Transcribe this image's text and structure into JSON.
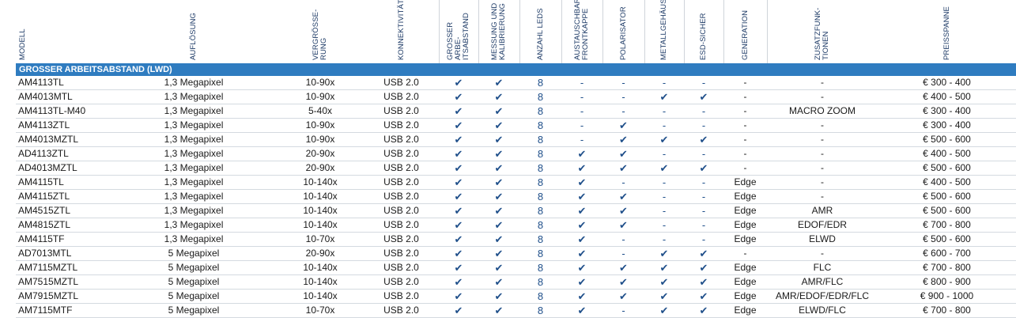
{
  "table": {
    "columns": [
      [
        "MODELL"
      ],
      [
        "AUFLÖSUNG"
      ],
      [
        "VERGRÖSSE-",
        "RUNG"
      ],
      [
        "KONNEKTIVITÄT"
      ],
      [
        "GROSSER ARBE-",
        "ITSABSTAND"
      ],
      [
        "MESSUNG UND",
        "KALIBRIERUNG"
      ],
      [
        "ANZAHL LEDS"
      ],
      [
        "AUSTAUSCHBARE",
        "FRONTKAPPE"
      ],
      [
        "POLARISATOR"
      ],
      [
        "METALLGEHÄUSE"
      ],
      [
        "ESD-SICHER"
      ],
      [
        "GENERATION"
      ],
      [
        "ZUSATZFUNK-",
        "TIONEN"
      ],
      [
        "PREISSPANNE"
      ]
    ],
    "section": "GROSSER ARBEITSABSTAND (LWD)",
    "rows": [
      [
        "AM4113TL",
        "1,3 Megapixel",
        "10-90x",
        "USB 2.0",
        "✔",
        "✔",
        8,
        "-",
        "-",
        "-",
        "-",
        "-",
        "-",
        "€ 300 - 400"
      ],
      [
        "AM4013MTL",
        "1,3 Megapixel",
        "10-90x",
        "USB 2.0",
        "✔",
        "✔",
        8,
        "-",
        "-",
        "✔",
        "✔",
        "-",
        "-",
        "€ 400 - 500"
      ],
      [
        "AM4113TL-M40",
        "1,3 Megapixel",
        "5-40x",
        "USB 2.0",
        "✔",
        "✔",
        8,
        "-",
        "-",
        "-",
        "-",
        "-",
        "MACRO ZOOM",
        "€ 300 - 400"
      ],
      [
        "AM4113ZTL",
        "1,3 Megapixel",
        "10-90x",
        "USB 2.0",
        "✔",
        "✔",
        8,
        "-",
        "✔",
        "-",
        "-",
        "-",
        "-",
        "€ 300 - 400"
      ],
      [
        "AM4013MZTL",
        "1,3 Megapixel",
        "10-90x",
        "USB 2.0",
        "✔",
        "✔",
        8,
        "-",
        "✔",
        "✔",
        "✔",
        "-",
        "-",
        "€ 500 - 600"
      ],
      [
        "AD4113ZTL",
        "1,3 Megapixel",
        "20-90x",
        "USB 2.0",
        "✔",
        "✔",
        8,
        "✔",
        "✔",
        "-",
        "-",
        "-",
        "-",
        "€ 400 - 500"
      ],
      [
        "AD4013MZTL",
        "1,3 Megapixel",
        "20-90x",
        "USB 2.0",
        "✔",
        "✔",
        8,
        "✔",
        "✔",
        "✔",
        "✔",
        "-",
        "-",
        "€ 500 - 600"
      ],
      [
        "AM4115TL",
        "1,3 Megapixel",
        "10-140x",
        "USB 2.0",
        "✔",
        "✔",
        8,
        "✔",
        "-",
        "-",
        "-",
        "Edge",
        "-",
        "€ 400 - 500"
      ],
      [
        "AM4115ZTL",
        "1,3 Megapixel",
        "10-140x",
        "USB 2.0",
        "✔",
        "✔",
        8,
        "✔",
        "✔",
        "-",
        "-",
        "Edge",
        "-",
        "€ 500 - 600"
      ],
      [
        "AM4515ZTL",
        "1,3 Megapixel",
        "10-140x",
        "USB 2.0",
        "✔",
        "✔",
        8,
        "✔",
        "✔",
        "-",
        "-",
        "Edge",
        "AMR",
        "€ 500 - 600"
      ],
      [
        "AM4815ZTL",
        "1,3 Megapixel",
        "10-140x",
        "USB 2.0",
        "✔",
        "✔",
        8,
        "✔",
        "✔",
        "-",
        "-",
        "Edge",
        "EDOF/EDR",
        "€ 700 - 800"
      ],
      [
        "AM4115TF",
        "1,3 Megapixel",
        "10-70x",
        "USB 2.0",
        "✔",
        "✔",
        8,
        "✔",
        "-",
        "-",
        "-",
        "Edge",
        "ELWD",
        "€ 500 - 600"
      ],
      [
        "AD7013MTL",
        "5 Megapixel",
        "20-90x",
        "USB 2.0",
        "✔",
        "✔",
        8,
        "✔",
        "-",
        "✔",
        "✔",
        "-",
        "-",
        "€ 600 - 700"
      ],
      [
        "AM7115MZTL",
        "5 Megapixel",
        "10-140x",
        "USB 2.0",
        "✔",
        "✔",
        8,
        "✔",
        "✔",
        "✔",
        "✔",
        "Edge",
        "FLC",
        "€ 700 - 800"
      ],
      [
        "AM7515MZTL",
        "5 Megapixel",
        "10-140x",
        "USB 2.0",
        "✔",
        "✔",
        8,
        "✔",
        "✔",
        "✔",
        "✔",
        "Edge",
        "AMR/FLC",
        "€ 800 - 900"
      ],
      [
        "AM7915MZTL",
        "5 Megapixel",
        "10-140x",
        "USB 2.0",
        "✔",
        "✔",
        8,
        "✔",
        "✔",
        "✔",
        "✔",
        "Edge",
        "AMR/EDOF/EDR/FLC",
        "€ 900 - 1000"
      ],
      [
        "AM7115MTF",
        "5 Megapixel",
        "10-70x",
        "USB 2.0",
        "✔",
        "✔",
        8,
        "✔",
        "-",
        "✔",
        "✔",
        "Edge",
        "ELWD/FLC",
        "€ 700 - 800"
      ]
    ]
  }
}
